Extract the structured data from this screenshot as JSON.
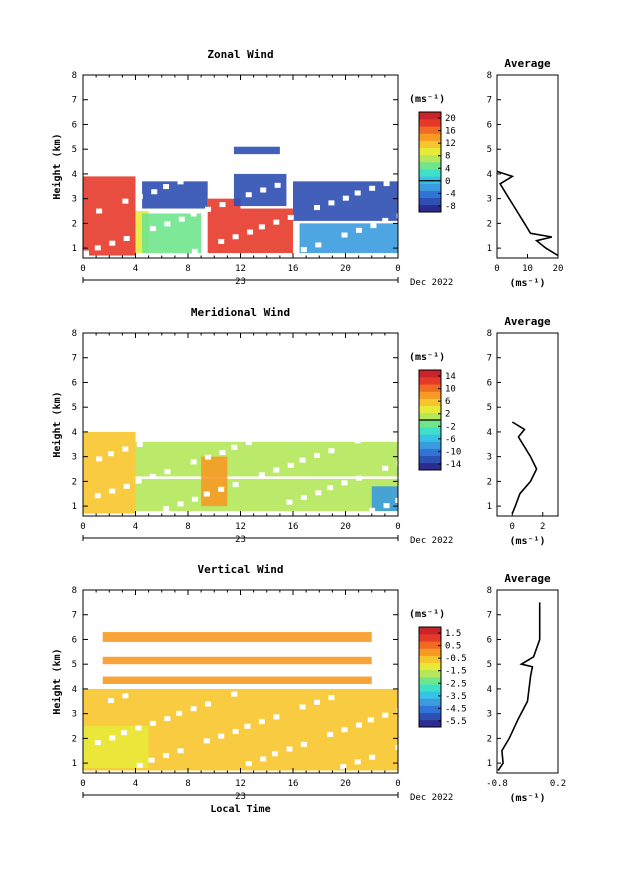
{
  "figure": {
    "time_ticks": [
      "0",
      "4",
      "8",
      "12",
      "16",
      "20",
      "0"
    ],
    "day_label": "23",
    "month_label": "Dec 2022",
    "x_axis_label": "Local Time",
    "y_axis_label": "Height (km)",
    "height_ticks": [
      "1",
      "2",
      "3",
      "4",
      "5",
      "6",
      "7",
      "8"
    ],
    "avg_title": "Average",
    "unit_label": "(ms⁻¹)",
    "colormap": [
      "#2b2c8f",
      "#2e4fb3",
      "#2f74d6",
      "#3a9bdf",
      "#37c3e6",
      "#3fe0c8",
      "#6fe58c",
      "#b4e85a",
      "#e8ea3a",
      "#f7c52c",
      "#f79a24",
      "#f06a24",
      "#e53a2a",
      "#c9242a"
    ]
  },
  "chart_data": [
    {
      "type": "heatmap",
      "title": "Zonal Wind",
      "xlabel": "",
      "ylabel": "Height (km)",
      "xlim": [
        0,
        24
      ],
      "ylim": [
        0.6,
        8
      ],
      "colorbar": {
        "unit": "(ms⁻¹)",
        "ticks": [
          "20",
          "16",
          "12",
          "8",
          "4",
          "0",
          "-4",
          "-8"
        ],
        "range": [
          -10,
          22
        ],
        "contour": 0
      },
      "layers": [
        {
          "t0": 0,
          "t1": 4,
          "h0": 0.7,
          "h1": 3.9,
          "v": 18
        },
        {
          "t0": 4,
          "t1": 5,
          "h0": 0.8,
          "h1": 2.5,
          "v": 10
        },
        {
          "t0": 4.5,
          "t1": 9.5,
          "h0": 2.6,
          "h1": 3.7,
          "v": -6
        },
        {
          "t0": 4.5,
          "t1": 9,
          "h0": 0.8,
          "h1": 2.4,
          "v": 4
        },
        {
          "t0": 9.5,
          "t1": 12,
          "h0": 0.8,
          "h1": 3.0,
          "v": 18
        },
        {
          "t0": 12,
          "t1": 16,
          "h0": 0.8,
          "h1": 2.6,
          "v": 18
        },
        {
          "t0": 11.5,
          "t1": 15.5,
          "h0": 2.7,
          "h1": 4.0,
          "v": -6
        },
        {
          "t0": 11.5,
          "t1": 15,
          "h0": 4.8,
          "h1": 5.1,
          "v": -6
        },
        {
          "t0": 16,
          "t1": 24,
          "h0": 2.1,
          "h1": 3.7,
          "v": -6
        },
        {
          "t0": 16.5,
          "t1": 24,
          "h0": 0.8,
          "h1": 2.0,
          "v": -2
        }
      ],
      "average": {
        "xlim": [
          0,
          20
        ],
        "xticks": [
          "0",
          "10",
          "20"
        ],
        "xlabel": "(ms⁻¹)",
        "profile": [
          [
            20,
            0.7
          ],
          [
            16,
            1.0
          ],
          [
            13,
            1.3
          ],
          [
            18,
            1.45
          ],
          [
            11,
            1.6
          ],
          [
            9,
            2.0
          ],
          [
            6,
            2.6
          ],
          [
            3,
            3.2
          ],
          [
            1,
            3.6
          ],
          [
            5,
            3.9
          ],
          [
            0,
            4.1
          ]
        ]
      }
    },
    {
      "type": "heatmap",
      "title": "Meridional Wind",
      "xlabel": "",
      "ylabel": "Height (km)",
      "xlim": [
        0,
        24
      ],
      "ylim": [
        0.6,
        8
      ],
      "colorbar": {
        "unit": "(ms⁻¹)",
        "ticks": [
          "14",
          "10",
          "6",
          "2",
          "-2",
          "-6",
          "-10",
          "-14"
        ],
        "range": [
          -16,
          16
        ],
        "contour": 0
      },
      "layers": [
        {
          "t0": 0,
          "t1": 4,
          "h0": 0.7,
          "h1": 4.0,
          "v": 6
        },
        {
          "t0": 4,
          "t1": 24,
          "h0": 2.2,
          "h1": 3.6,
          "v": 0
        },
        {
          "t0": 4,
          "t1": 24,
          "h0": 0.8,
          "h1": 2.1,
          "v": 2
        },
        {
          "t0": 9,
          "t1": 11,
          "h0": 1.0,
          "h1": 3.0,
          "v": 8
        },
        {
          "t0": 22,
          "t1": 24,
          "h0": 0.8,
          "h1": 1.8,
          "v": -8
        }
      ],
      "average": {
        "xlim": [
          -1,
          3
        ],
        "xticks": [
          "0",
          "2"
        ],
        "xlabel": "(ms⁻¹)",
        "profile": [
          [
            0,
            0.7
          ],
          [
            0.2,
            1.0
          ],
          [
            0.5,
            1.5
          ],
          [
            1.2,
            2.0
          ],
          [
            1.6,
            2.5
          ],
          [
            1.2,
            3.0
          ],
          [
            0.8,
            3.4
          ],
          [
            0.4,
            3.8
          ],
          [
            0.8,
            4.1
          ],
          [
            0,
            4.4
          ]
        ]
      }
    },
    {
      "type": "heatmap",
      "title": "Vertical Wind",
      "xlabel": "Local Time",
      "ylabel": "Height (km)",
      "xlim": [
        0,
        24
      ],
      "ylim": [
        0.6,
        8
      ],
      "colorbar": {
        "unit": "(ms⁻¹)",
        "ticks": [
          "1.5",
          "0.5",
          "-0.5",
          "-1.5",
          "-2.5",
          "-3.5",
          "-4.5",
          "-5.5"
        ],
        "range": [
          -6,
          2
        ],
        "contour": null
      },
      "layers": [
        {
          "t0": 0,
          "t1": 24,
          "h0": 0.7,
          "h1": 4.0,
          "v": -0.3
        },
        {
          "t0": 0,
          "t1": 5,
          "h0": 0.8,
          "h1": 2.5,
          "v": -1.2
        },
        {
          "t0": 1.5,
          "t1": 22,
          "h0": 4.2,
          "h1": 4.5,
          "v": 0.2
        },
        {
          "t0": 1.5,
          "t1": 22,
          "h0": 5.0,
          "h1": 5.3,
          "v": 0.1
        },
        {
          "t0": 1.5,
          "t1": 22,
          "h0": 5.9,
          "h1": 6.3,
          "v": 0.2
        }
      ],
      "average": {
        "xlim": [
          -0.8,
          0.2
        ],
        "xticks": [
          "-0.8",
          "0.2"
        ],
        "xlabel": "(ms⁻¹)",
        "profile": [
          [
            -0.78,
            0.7
          ],
          [
            -0.7,
            1.0
          ],
          [
            -0.72,
            1.5
          ],
          [
            -0.6,
            2.0
          ],
          [
            -0.45,
            2.8
          ],
          [
            -0.3,
            3.5
          ],
          [
            -0.25,
            4.5
          ],
          [
            -0.22,
            4.9
          ],
          [
            -0.4,
            5.0
          ],
          [
            -0.2,
            5.3
          ],
          [
            -0.1,
            6.0
          ],
          [
            -0.1,
            7.5
          ]
        ]
      }
    }
  ]
}
